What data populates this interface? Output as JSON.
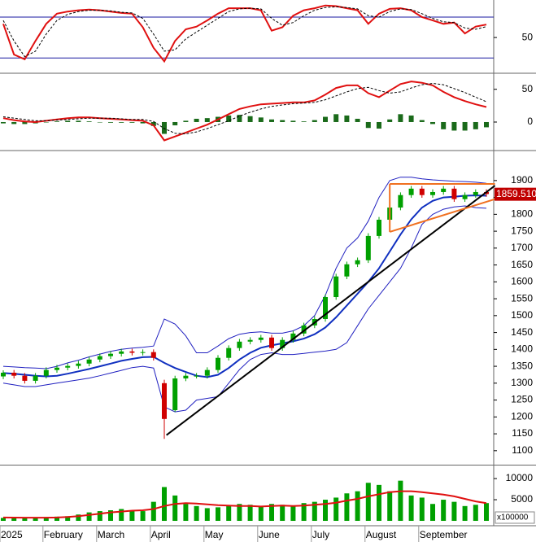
{
  "chart_data": [
    {
      "type": "line",
      "ylim": [
        0,
        105
      ],
      "yticks": [
        50
      ],
      "hlines": [
        80,
        20
      ],
      "hline_color": "#1a1aa0",
      "series": [
        {
          "color": "#e01010",
          "width": 2,
          "values": [
            70,
            25,
            18,
            45,
            70,
            85,
            88,
            90,
            91,
            90,
            88,
            86,
            85,
            65,
            35,
            15,
            45,
            62,
            66,
            75,
            85,
            93,
            93,
            93,
            90,
            60,
            65,
            82,
            90,
            93,
            97,
            96,
            93,
            90,
            70,
            85,
            92,
            93,
            90,
            80,
            75,
            70,
            72,
            56,
            66,
            69
          ]
        },
        {
          "color": "#000000",
          "width": 1,
          "dash": true,
          "values": [
            75,
            45,
            22,
            30,
            55,
            75,
            84,
            88,
            90,
            90,
            89,
            87,
            86,
            78,
            55,
            30,
            32,
            48,
            58,
            68,
            78,
            88,
            92,
            93,
            92,
            78,
            68,
            72,
            82,
            90,
            94,
            95,
            94,
            92,
            82,
            80,
            88,
            92,
            91,
            85,
            78,
            73,
            72,
            64,
            62,
            66
          ]
        }
      ]
    },
    {
      "type": "macd",
      "ylim": [
        -41,
        72
      ],
      "yticks": [
        0,
        50
      ],
      "histogram": {
        "color": "#1a6a1a",
        "values": [
          -2,
          -3,
          -3,
          -2,
          0,
          1,
          2,
          2,
          1,
          0,
          -1,
          -1,
          -1,
          -2,
          -6,
          -18,
          -5,
          2,
          5,
          6,
          8,
          10,
          11,
          9,
          7,
          4,
          3,
          2,
          1,
          3,
          8,
          12,
          10,
          5,
          -9,
          -10,
          4,
          12,
          10,
          3,
          -3,
          -11,
          -13,
          -13,
          -11,
          -8
        ]
      },
      "series": [
        {
          "color": "#e01010",
          "width": 2,
          "values": [
            6,
            3,
            1,
            0,
            2,
            4,
            6,
            7,
            7,
            6,
            5,
            4,
            3,
            2,
            -5,
            -28,
            -22,
            -16,
            -10,
            -4,
            4,
            12,
            20,
            24,
            27,
            28,
            29,
            30,
            30,
            33,
            42,
            52,
            56,
            56,
            44,
            38,
            48,
            58,
            62,
            60,
            56,
            46,
            38,
            32,
            27,
            23
          ]
        },
        {
          "color": "#000000",
          "width": 1,
          "dash": true,
          "values": [
            8,
            6,
            4,
            2,
            2,
            3,
            4,
            5,
            6,
            6,
            6,
            5,
            4,
            4,
            1,
            -10,
            -17,
            -18,
            -15,
            -10,
            -4,
            2,
            9,
            15,
            20,
            24,
            26,
            28,
            29,
            30,
            34,
            40,
            46,
            51,
            53,
            48,
            44,
            46,
            52,
            57,
            59,
            57,
            51,
            45,
            38,
            31
          ]
        }
      ]
    },
    {
      "type": "candlestick",
      "categories": [
        "2025",
        null,
        null,
        null,
        "February",
        null,
        null,
        null,
        null,
        "March",
        null,
        null,
        null,
        null,
        "April",
        null,
        null,
        null,
        null,
        "May",
        null,
        null,
        null,
        null,
        "June",
        null,
        null,
        null,
        null,
        "July",
        null,
        null,
        null,
        null,
        "August",
        null,
        null,
        null,
        null,
        "September",
        null,
        null,
        null,
        null,
        null,
        null
      ],
      "ylim": [
        1061,
        1984
      ],
      "yticks": [
        1100,
        1150,
        1200,
        1250,
        1300,
        1350,
        1400,
        1450,
        1500,
        1550,
        1600,
        1650,
        1700,
        1750,
        1800,
        1850,
        1900
      ],
      "up_color": "#00a000",
      "down_color": "#d00000",
      "open": [
        1320,
        1331,
        1322,
        1307,
        1322,
        1339,
        1346,
        1351,
        1358,
        1370,
        1380,
        1387,
        1394,
        1390,
        1392,
        1300,
        1220,
        1314,
        1322,
        1322,
        1339,
        1375,
        1404,
        1423,
        1428,
        1435,
        1404,
        1428,
        1447,
        1471,
        1490,
        1555,
        1616,
        1652,
        1664,
        1736,
        1784,
        1820,
        1857,
        1876,
        1857,
        1866,
        1876,
        1845,
        1857,
        1866
      ],
      "high": [
        1338,
        1339,
        1330,
        1330,
        1347,
        1354,
        1359,
        1366,
        1378,
        1388,
        1395,
        1402,
        1402,
        1400,
        1400,
        1310,
        1322,
        1330,
        1330,
        1347,
        1383,
        1412,
        1431,
        1436,
        1443,
        1443,
        1436,
        1455,
        1479,
        1498,
        1563,
        1624,
        1660,
        1672,
        1744,
        1792,
        1828,
        1865,
        1884,
        1884,
        1874,
        1884,
        1884,
        1865,
        1874,
        1874
      ],
      "low": [
        1312,
        1314,
        1299,
        1299,
        1314,
        1331,
        1338,
        1343,
        1350,
        1362,
        1372,
        1379,
        1382,
        1382,
        1367,
        1135,
        1215,
        1306,
        1314,
        1314,
        1331,
        1367,
        1396,
        1415,
        1420,
        1396,
        1396,
        1420,
        1439,
        1463,
        1482,
        1547,
        1608,
        1644,
        1656,
        1728,
        1776,
        1812,
        1849,
        1849,
        1849,
        1858,
        1837,
        1837,
        1849,
        1852
      ],
      "close": [
        1331,
        1322,
        1307,
        1322,
        1339,
        1346,
        1351,
        1358,
        1370,
        1380,
        1387,
        1394,
        1390,
        1392,
        1375,
        1194,
        1314,
        1322,
        1322,
        1339,
        1375,
        1404,
        1423,
        1428,
        1435,
        1404,
        1428,
        1447,
        1471,
        1490,
        1555,
        1616,
        1652,
        1664,
        1736,
        1784,
        1820,
        1857,
        1876,
        1857,
        1866,
        1876,
        1845,
        1857,
        1866,
        1860
      ],
      "series": [
        {
          "color": "#1030c0",
          "width": 2,
          "values": [
            1330,
            1328,
            1325,
            1322,
            1320,
            1322,
            1328,
            1335,
            1342,
            1350,
            1358,
            1366,
            1372,
            1377,
            1378,
            1360,
            1345,
            1333,
            1322,
            1318,
            1325,
            1345,
            1370,
            1390,
            1405,
            1412,
            1418,
            1424,
            1432,
            1445,
            1465,
            1495,
            1530,
            1565,
            1600,
            1640,
            1690,
            1740,
            1785,
            1820,
            1840,
            1850,
            1852,
            1855,
            1856,
            1855
          ]
        },
        {
          "color": "#2020c0",
          "width": 1,
          "values": [
            1350,
            1348,
            1346,
            1345,
            1343,
            1350,
            1360,
            1368,
            1378,
            1386,
            1394,
            1400,
            1404,
            1406,
            1410,
            1490,
            1475,
            1440,
            1390,
            1390,
            1410,
            1432,
            1445,
            1450,
            1452,
            1448,
            1448,
            1455,
            1470,
            1500,
            1560,
            1640,
            1700,
            1730,
            1780,
            1850,
            1900,
            1910,
            1910,
            1905,
            1902,
            1900,
            1898,
            1897,
            1895,
            1892
          ]
        },
        {
          "color": "#2020c0",
          "width": 1,
          "values": [
            1300,
            1295,
            1290,
            1290,
            1295,
            1300,
            1305,
            1310,
            1315,
            1322,
            1330,
            1338,
            1346,
            1350,
            1345,
            1230,
            1215,
            1220,
            1250,
            1255,
            1260,
            1300,
            1340,
            1370,
            1385,
            1390,
            1385,
            1385,
            1388,
            1392,
            1395,
            1400,
            1420,
            1470,
            1520,
            1560,
            1600,
            1640,
            1700,
            1770,
            1800,
            1815,
            1822,
            1825,
            1820,
            1818
          ]
        }
      ],
      "trend_lines": [
        {
          "color": "#000000",
          "x": [
            15.2,
            45.8
          ],
          "y": [
            1146,
            1885
          ]
        },
        {
          "color": "#f07020",
          "x": [
            36,
            45.8
          ],
          "y": [
            1890,
            1890
          ]
        },
        {
          "color": "#f07020",
          "x": [
            36,
            45.8
          ],
          "y": [
            1748,
            1845
          ]
        },
        {
          "color": "#f07020",
          "x": [
            36,
            36
          ],
          "y": [
            1748,
            1890
          ]
        }
      ],
      "last_price": {
        "value": 1859.51,
        "label": "1859.510",
        "color": "#c00000"
      }
    },
    {
      "type": "bar",
      "ylim": [
        -960,
        12900
      ],
      "yticks": [
        5000,
        10000
      ],
      "unit_label": "x100000",
      "color": "#00a000",
      "values": [
        700,
        600,
        800,
        700,
        900,
        1000,
        1100,
        1500,
        2000,
        2300,
        2500,
        2800,
        2500,
        2300,
        4500,
        8000,
        6000,
        4000,
        3500,
        3000,
        3200,
        3500,
        4000,
        3800,
        3500,
        4000,
        3800,
        3500,
        4200,
        4500,
        5000,
        5500,
        6500,
        7000,
        9000,
        8500,
        7000,
        9500,
        6000,
        5500,
        4000,
        5000,
        4500,
        3500,
        3800,
        4200
      ],
      "series": [
        {
          "color": "#e01010",
          "width": 2,
          "values": [
            800,
            780,
            760,
            750,
            760,
            800,
            900,
            1100,
            1400,
            1700,
            2000,
            2200,
            2400,
            2500,
            2800,
            3500,
            4000,
            4200,
            4100,
            3900,
            3700,
            3600,
            3500,
            3500,
            3400,
            3500,
            3600,
            3500,
            3600,
            3800,
            4000,
            4300,
            4800,
            5200,
            5800,
            6300,
            6800,
            7000,
            7000,
            6800,
            6500,
            6200,
            5800,
            5200,
            4600,
            4200
          ]
        }
      ]
    }
  ]
}
